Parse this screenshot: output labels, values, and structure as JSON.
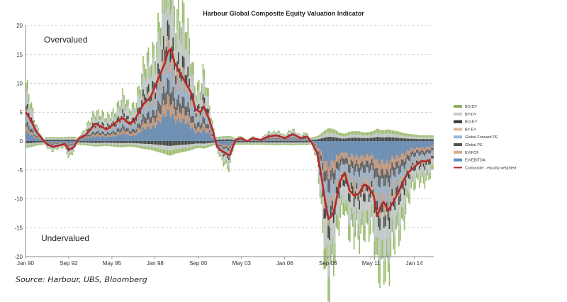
{
  "chart_data": {
    "type": "line",
    "title": "Harbour Global Composite Equity Valuation Indicator",
    "xlabel": "",
    "ylabel": "",
    "ylim": [
      -20,
      20
    ],
    "y_ticks": [
      20,
      15,
      10,
      5,
      0,
      -5,
      -10,
      -15,
      -20
    ],
    "x_ticks": [
      "Jan 90",
      "Sep 92",
      "May 95",
      "Jan 98",
      "Sep 00",
      "May 03",
      "Jan 06",
      "Sep 08",
      "May 11",
      "Jan 14"
    ],
    "x_range": [
      1990.0,
      2015.2
    ],
    "grid": true,
    "legend_position": "right",
    "annotations": {
      "top": "Overvalued",
      "bottom": "Undervalued"
    },
    "series": [
      {
        "name": "BO-DY",
        "color": "#8db25a",
        "type": "band",
        "scale": 1.9
      },
      {
        "name": "BY-DY",
        "color": "#c6cbd6",
        "type": "band",
        "scale": 1.6
      },
      {
        "name": "BO-EY",
        "color": "#333333",
        "type": "band",
        "scale": 1.15
      },
      {
        "name": "BY-EY",
        "color": "#e0b89a",
        "type": "band",
        "scale": 1.0
      },
      {
        "name": "Global Forward PE",
        "color": "#9ab8d6",
        "type": "band",
        "scale": 0.85
      },
      {
        "name": "Global PE",
        "color": "#555555",
        "type": "band",
        "scale": 0.6
      },
      {
        "name": "EV/FCF",
        "color": "#d9a98a",
        "type": "band",
        "scale": 0.45
      },
      {
        "name": "EV/EBITDA",
        "color": "#5b8ec4",
        "type": "band",
        "scale": 0.3
      },
      {
        "name": "Composite - equally weighted",
        "color": "#b5282a",
        "type": "line",
        "x": [
          1990.0,
          1990.3,
          1990.7,
          1991.0,
          1991.3,
          1991.7,
          1992.0,
          1992.4,
          1992.7,
          1993.0,
          1993.3,
          1993.7,
          1994.0,
          1994.3,
          1994.7,
          1995.0,
          1995.4,
          1995.7,
          1996.0,
          1996.4,
          1996.7,
          1997.0,
          1997.3,
          1997.7,
          1998.0,
          1998.3,
          1998.6,
          1998.8,
          1999.0,
          1999.2,
          1999.5,
          1999.7,
          2000.0,
          2000.2,
          2000.5,
          2000.8,
          2001.0,
          2001.3,
          2001.6,
          2001.8,
          2002.0,
          2002.3,
          2002.6,
          2002.8,
          2003.0,
          2003.3,
          2003.7,
          2004.0,
          2004.5,
          2005.0,
          2005.5,
          2006.0,
          2006.5,
          2007.0,
          2007.4,
          2007.7,
          2008.0,
          2008.2,
          2008.5,
          2008.7,
          2008.9,
          2009.1,
          2009.4,
          2009.7,
          2010.0,
          2010.3,
          2010.6,
          2010.9,
          2011.2,
          2011.5,
          2011.7,
          2011.9,
          2012.1,
          2012.4,
          2012.7,
          2013.0,
          2013.3,
          2013.6,
          2014.0,
          2014.4,
          2014.8,
          2015.0
        ],
        "values": [
          5.0,
          3.8,
          1.5,
          0.5,
          -0.5,
          -1.0,
          -0.8,
          -0.5,
          -1.5,
          -1.0,
          0.5,
          1.0,
          2.0,
          3.0,
          2.5,
          2.0,
          2.8,
          3.5,
          4.0,
          3.0,
          3.5,
          5.0,
          6.5,
          7.5,
          9.5,
          11.5,
          13.5,
          15.5,
          16.0,
          13.5,
          12.0,
          11.0,
          9.5,
          8.5,
          5.5,
          5.0,
          6.0,
          4.0,
          1.5,
          -0.8,
          -1.5,
          -2.0,
          -2.5,
          -1.0,
          0.3,
          0.5,
          0.0,
          0.5,
          0.2,
          0.8,
          1.0,
          0.5,
          1.2,
          0.5,
          0.8,
          -0.5,
          -2.0,
          -5.0,
          -10.5,
          -13.5,
          -13.0,
          -11.5,
          -7.0,
          -5.5,
          -8.5,
          -9.5,
          -9.0,
          -7.5,
          -8.0,
          -9.5,
          -13.0,
          -11.5,
          -10.5,
          -12.0,
          -10.5,
          -9.0,
          -7.0,
          -5.5,
          -4.5,
          -3.5,
          -3.5,
          -3.2
        ]
      }
    ]
  },
  "source": "Source: Harbour, UBS, Bloomberg"
}
